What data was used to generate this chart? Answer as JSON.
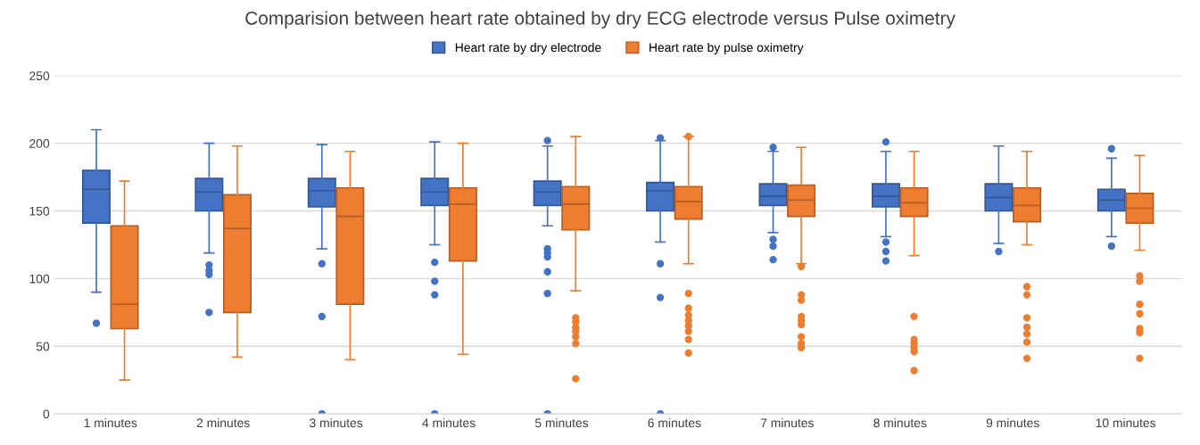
{
  "chart_data": {
    "type": "box",
    "title": "Comparision between heart rate obtained by dry ECG electrode versus Pulse oximetry",
    "categories": [
      "1 minutes",
      "2 minutes",
      "3 minutes",
      "4 minutes",
      "5 minutes",
      "6 minutes",
      "7 minutes",
      "8 minutes",
      "9 minutes",
      "10 minutes"
    ],
    "ylim": [
      0,
      250
    ],
    "yticks": [
      0,
      50,
      100,
      150,
      200,
      250
    ],
    "grid": "y",
    "legend": "top",
    "series": [
      {
        "name": "Heart rate by dry electrode",
        "color": "#4472c4",
        "boxes": [
          {
            "low": 90,
            "q1": 141,
            "median": 166,
            "q3": 180,
            "high": 210,
            "outliers": [
              67
            ]
          },
          {
            "low": 119,
            "q1": 150,
            "median": 164,
            "q3": 174,
            "high": 200,
            "outliers": [
              110,
              106,
              103,
              75
            ]
          },
          {
            "low": 122,
            "q1": 153,
            "median": 165,
            "q3": 174,
            "high": 199,
            "outliers": [
              111,
              72,
              0
            ]
          },
          {
            "low": 125,
            "q1": 154,
            "median": 164,
            "q3": 174,
            "high": 201,
            "outliers": [
              112,
              98,
              88,
              0
            ]
          },
          {
            "low": 139,
            "q1": 154,
            "median": 164,
            "q3": 172,
            "high": 198,
            "outliers": [
              202,
              122,
              119,
              116,
              105,
              89,
              0
            ]
          },
          {
            "low": 127,
            "q1": 150,
            "median": 165,
            "q3": 171,
            "high": 202,
            "outliers": [
              204,
              111,
              86,
              0
            ]
          },
          {
            "low": 134,
            "q1": 154,
            "median": 161,
            "q3": 170,
            "high": 194,
            "outliers": [
              197,
              129,
              124,
              114
            ]
          },
          {
            "low": 131,
            "q1": 153,
            "median": 161,
            "q3": 170,
            "high": 194,
            "outliers": [
              201,
              127,
              120,
              113
            ]
          },
          {
            "low": 126,
            "q1": 150,
            "median": 160,
            "q3": 170,
            "high": 198,
            "outliers": [
              120
            ]
          },
          {
            "low": 131,
            "q1": 150,
            "median": 158,
            "q3": 166,
            "high": 189,
            "outliers": [
              196,
              124
            ]
          }
        ]
      },
      {
        "name": "Heart rate by pulse oximetry",
        "color": "#ed7d31",
        "boxes": [
          {
            "low": 25,
            "q1": 63,
            "median": 81,
            "q3": 139,
            "high": 172
          },
          {
            "low": 42,
            "q1": 75,
            "median": 137,
            "q3": 162,
            "high": 198
          },
          {
            "low": 40,
            "q1": 81,
            "median": 146,
            "q3": 167,
            "high": 194
          },
          {
            "low": 44,
            "q1": 113,
            "median": 155,
            "q3": 167,
            "high": 200
          },
          {
            "low": 91,
            "q1": 136,
            "median": 155,
            "q3": 168,
            "high": 205,
            "outliers": [
              71,
              68,
              64,
              61,
              57,
              52,
              26
            ]
          },
          {
            "low": 111,
            "q1": 144,
            "median": 157,
            "q3": 168,
            "high": 205,
            "outliers": [
              205,
              89,
              78,
              73,
              69,
              65,
              61,
              55,
              45
            ]
          },
          {
            "low": 111,
            "q1": 146,
            "median": 158,
            "q3": 169,
            "high": 197,
            "outliers": [
              109,
              88,
              84,
              72,
              69,
              66,
              57,
              52,
              49
            ]
          },
          {
            "low": 117,
            "q1": 146,
            "median": 156,
            "q3": 167,
            "high": 194,
            "outliers": [
              72,
              55,
              52,
              49,
              46,
              32
            ]
          },
          {
            "low": 125,
            "q1": 142,
            "median": 154,
            "q3": 167,
            "high": 194,
            "outliers": [
              94,
              88,
              71,
              64,
              59,
              53,
              41
            ]
          },
          {
            "low": 121,
            "q1": 141,
            "median": 152,
            "q3": 163,
            "high": 191,
            "outliers": [
              102,
              98,
              81,
              74,
              63,
              60,
              41
            ]
          }
        ]
      }
    ]
  }
}
